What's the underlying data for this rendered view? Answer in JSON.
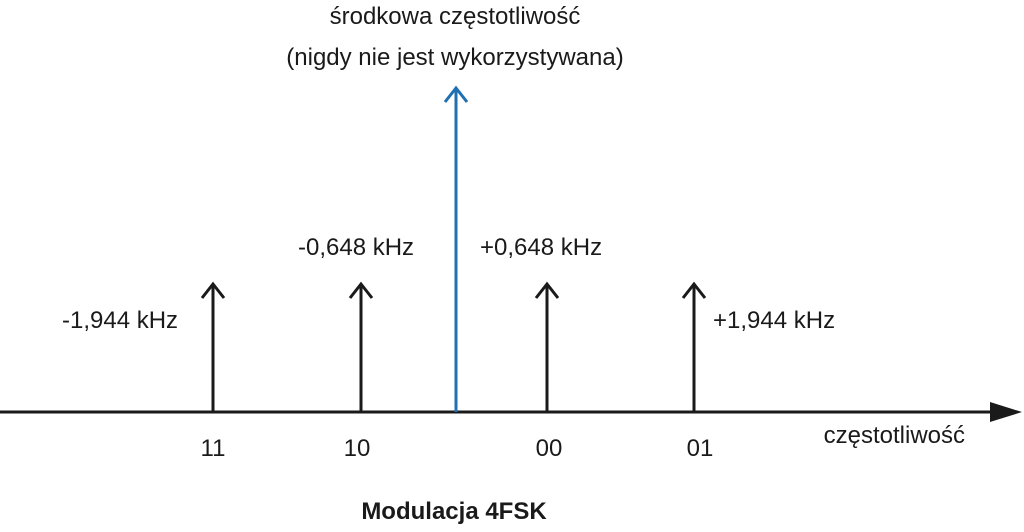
{
  "center": {
    "line1": "środkowa częstotliwość",
    "line2": "(nigdy nie jest wykorzystywana)",
    "color": "#1f6fb3"
  },
  "axis": {
    "label": "częstotliwość",
    "color": "#1a1a1a"
  },
  "tones": [
    {
      "symbol": "11",
      "offset": "-1,944 kHz"
    },
    {
      "symbol": "10",
      "offset": "-0,648 kHz"
    },
    {
      "symbol": "00",
      "offset": "+0,648 kHz"
    },
    {
      "symbol": "01",
      "offset": "+1,944 kHz"
    }
  ],
  "caption": "Modulacja 4FSK"
}
